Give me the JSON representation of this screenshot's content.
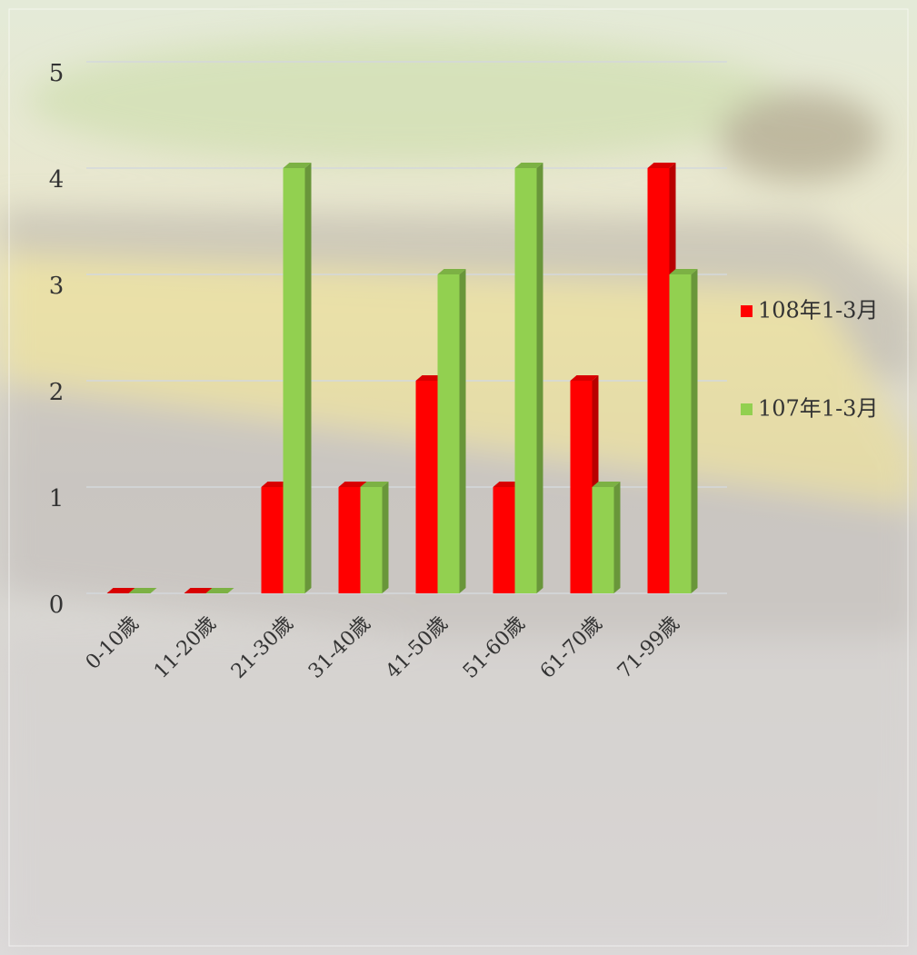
{
  "chart_data": {
    "type": "bar3d",
    "categories": [
      "0-10歲",
      "11-20歲",
      "21-30歲",
      "31-40歲",
      "41-50歲",
      "51-60歲",
      "61-70歲",
      "71-99歲"
    ],
    "series": [
      {
        "name": "108年1-3月",
        "color": "#ff0000",
        "values": [
          0,
          0,
          1,
          1,
          2,
          1,
          2,
          4
        ]
      },
      {
        "name": "107年1-3月",
        "color": "#92d050",
        "values": [
          0,
          0,
          4,
          1,
          3,
          4,
          1,
          3
        ]
      }
    ],
    "ylim": [
      0,
      5
    ],
    "yticks": [
      0,
      1,
      2,
      3,
      4,
      5
    ],
    "grid": true,
    "legend": "right"
  }
}
